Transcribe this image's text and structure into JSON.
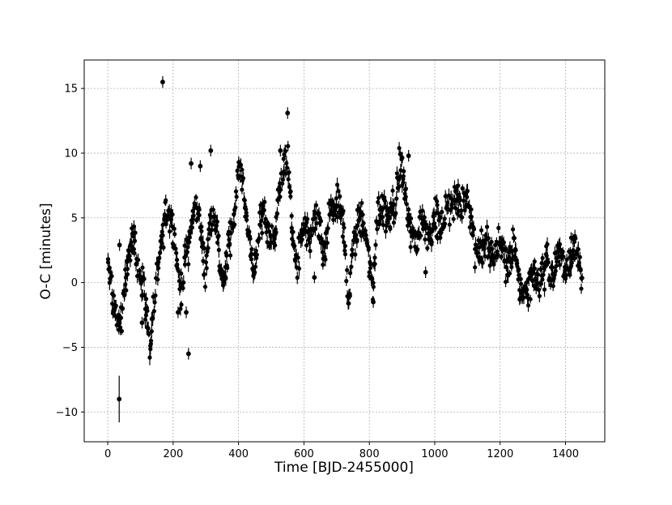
{
  "chart_data": {
    "type": "scatter",
    "title": "",
    "xlabel": "Time [BJD-2455000]",
    "ylabel": "O-C [minutes]",
    "xlim": [
      -72,
      1520
    ],
    "ylim": [
      -12.3,
      17.2
    ],
    "xticks": [
      0,
      200,
      400,
      600,
      800,
      1000,
      1200,
      1400
    ],
    "yticks": [
      -10,
      -5,
      0,
      5,
      10,
      15
    ],
    "ytick_labels": [
      "−10",
      "−5",
      "0",
      "5",
      "10",
      "15"
    ],
    "grid": true,
    "marker_color": "#000000",
    "has_error_bars": true,
    "trend": {
      "x": [
        0,
        10,
        20,
        30,
        40,
        55,
        70,
        85,
        100,
        115,
        130,
        145,
        160,
        175,
        190,
        205,
        220,
        235,
        250,
        265,
        280,
        295,
        310,
        325,
        340,
        355,
        370,
        385,
        400,
        415,
        430,
        445,
        460,
        475,
        490,
        505,
        520,
        535,
        550,
        565,
        580,
        600,
        620,
        640,
        660,
        680,
        700,
        720,
        735,
        750,
        770,
        790,
        800,
        810,
        820,
        840,
        860,
        880,
        895,
        905,
        920,
        940,
        960,
        980,
        1000,
        1020,
        1040,
        1060,
        1080,
        1100,
        1120,
        1140,
        1160,
        1180,
        1200,
        1220,
        1240,
        1260,
        1280,
        1300,
        1320,
        1340,
        1360,
        1380,
        1400,
        1420,
        1440,
        1450
      ],
      "y": [
        1.2,
        0.0,
        -2.0,
        -3.5,
        -2.5,
        0.5,
        3.5,
        2.5,
        0.5,
        -1.5,
        -5.0,
        -1.0,
        3.0,
        5.0,
        5.5,
        3.0,
        -1.0,
        1.5,
        3.5,
        6.0,
        5.0,
        1.0,
        4.0,
        6.0,
        2.0,
        0.0,
        3.0,
        5.0,
        9.0,
        7.0,
        3.5,
        1.0,
        3.5,
        5.5,
        4.0,
        2.5,
        6.5,
        8.5,
        10.0,
        3.0,
        1.5,
        4.5,
        3.0,
        5.5,
        2.0,
        5.5,
        6.0,
        4.5,
        -1.5,
        3.0,
        5.0,
        4.0,
        1.5,
        -1.0,
        5.0,
        5.5,
        5.0,
        6.0,
        9.5,
        8.0,
        4.5,
        3.0,
        5.0,
        3.5,
        5.0,
        4.0,
        6.0,
        6.5,
        6.0,
        7.0,
        3.0,
        2.5,
        3.0,
        1.5,
        3.5,
        1.0,
        3.0,
        -0.5,
        -0.5,
        1.0,
        0.0,
        1.5,
        0.5,
        2.5,
        1.0,
        2.5,
        2.0,
        0.5
      ]
    },
    "outliers": [
      {
        "x": 168,
        "y": 15.5
      },
      {
        "x": 35,
        "y": -9.0
      },
      {
        "x": 247,
        "y": -5.5
      },
      {
        "x": 550,
        "y": 13.1
      },
      {
        "x": 315,
        "y": 10.2
      },
      {
        "x": 255,
        "y": 9.2
      },
      {
        "x": 283,
        "y": 9.0
      },
      {
        "x": 920,
        "y": 9.8
      },
      {
        "x": 528,
        "y": 10.2
      },
      {
        "x": 36,
        "y": 2.9
      },
      {
        "x": 105,
        "y": -3.1
      },
      {
        "x": 215,
        "y": -2.3
      },
      {
        "x": 240,
        "y": -2.3
      },
      {
        "x": 632,
        "y": 0.4
      },
      {
        "x": 972,
        "y": 0.8
      },
      {
        "x": 812,
        "y": -1.5
      }
    ]
  }
}
